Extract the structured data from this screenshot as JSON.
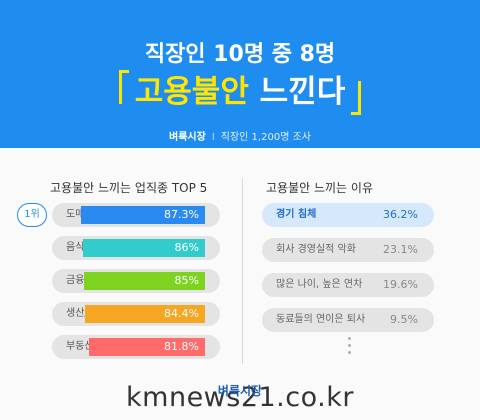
{
  "header": {
    "headline": "직장인 10명 중 8명",
    "title_main": "고용불안",
    "title_rest": " 느낀다",
    "source_brand": "벼룩시장",
    "source_sep": "I",
    "source_note": "직장인 1,200명 조사"
  },
  "colors": {
    "header_bg": "#1f8cf0",
    "highlight": "#ffe600"
  },
  "chart_data": [
    {
      "type": "bar",
      "title": "고용불안 느끼는 업직종 TOP 5",
      "rank_label": "1위",
      "categories": [
        "도매/소매업",
        "음식점업",
        "금융/보험업",
        "생산/제조업",
        "부동산/임대업"
      ],
      "values": [
        87.3,
        86,
        85,
        84.4,
        81.8
      ],
      "value_labels": [
        "87.3%",
        "86%",
        "85%",
        "84.4%",
        "81.8%"
      ],
      "colors": [
        "#2a8af0",
        "#33cccc",
        "#7ed321",
        "#f5a623",
        "#ff6b6b"
      ],
      "ylim": [
        0,
        100
      ]
    },
    {
      "type": "table",
      "title": "고용불안 느끼는 이유",
      "categories": [
        "경기 침체",
        "회사 경영실적 악화",
        "많은 나이, 높은 연차",
        "동료들의 연이은 퇴사"
      ],
      "values": [
        36.2,
        23.1,
        19.6,
        9.5
      ],
      "value_labels": [
        "36.2%",
        "23.1%",
        "19.6%",
        "9.5%"
      ]
    }
  ],
  "footer": {
    "logo": "벼룩시장",
    "watermark": "kmnews21.co.kr"
  }
}
